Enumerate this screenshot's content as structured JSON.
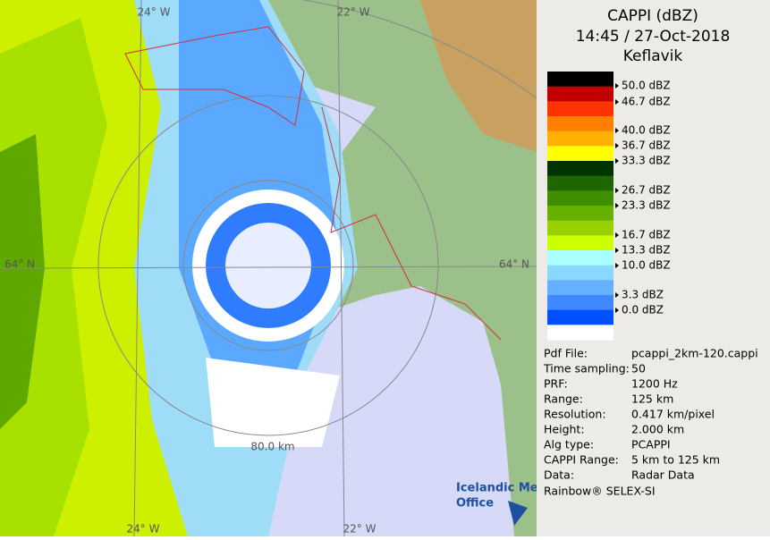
{
  "title": [
    "CAPPI (dBZ)",
    "14:45 / 27-Oct-2018",
    "Keflavik"
  ],
  "legend": {
    "colors": [
      "#000000",
      "#c00000",
      "#ff3300",
      "#ff8000",
      "#ffb000",
      "#ffff00",
      "#003300",
      "#1f6600",
      "#3f8f00",
      "#66b000",
      "#99d000",
      "#ccff00",
      "#aaffff",
      "#88d8ff",
      "#66b0ff",
      "#3f88ff",
      "#0050ff",
      "#ffffff"
    ],
    "labels": [
      "50.0 dBZ",
      "46.7 dBZ",
      "40.0 dBZ",
      "36.7 dBZ",
      "33.3 dBZ",
      "26.7 dBZ",
      "23.3 dBZ",
      "16.7 dBZ",
      "13.3 dBZ",
      "10.0 dBZ",
      "3.3 dBZ",
      "0.0 dBZ"
    ]
  },
  "info": [
    [
      "Pdf File:",
      "pcappi_2km-120.cappi"
    ],
    [
      "Time sampling:",
      "50"
    ],
    [
      "PRF:",
      "1200 Hz"
    ],
    [
      "Range:",
      "125 km"
    ],
    [
      "Resolution:",
      "0.417 km/pixel"
    ],
    [
      "Height:",
      "2.000 km"
    ],
    [
      "Alg type:",
      "PCAPPI"
    ],
    [
      "CAPPI Range:",
      "5 km to 125 km"
    ],
    [
      "Data:",
      "Radar Data"
    ]
  ],
  "footer": "Rainbow® SELEX-SI",
  "map_labels": {
    "lon_top": [
      "24° W",
      "22° W"
    ],
    "lon_bottom": [
      "24° W",
      "22° W"
    ],
    "lat": [
      "64° N",
      "64° N"
    ],
    "range": "80.0 km"
  },
  "logo": [
    "Icelandic Met",
    "Office"
  ]
}
